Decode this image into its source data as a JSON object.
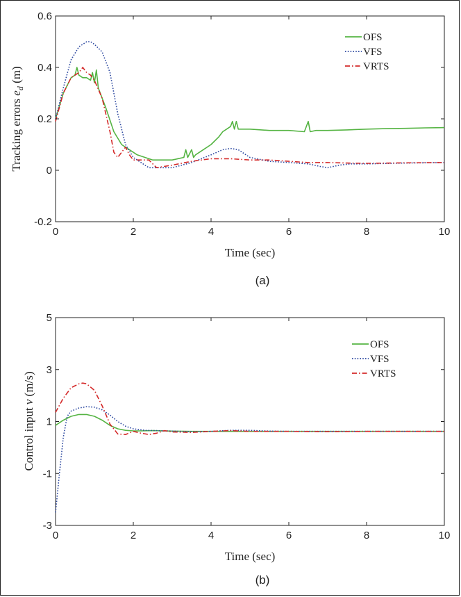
{
  "colors": {
    "OFS": "#55b443",
    "VFS": "#2c48a0",
    "VRTS": "#d42a2a",
    "axis": "#222222"
  },
  "chart_data": [
    {
      "panel": "a",
      "type": "line",
      "caption": "(a)",
      "xlabel": "Time (sec)",
      "ylabel_text": "Tracking errors ",
      "ylabel_var": "e",
      "ylabel_sub": "d",
      "ylabel_unit": " (m)",
      "xlim": [
        0,
        10
      ],
      "ylim": [
        -0.2,
        0.6
      ],
      "xticks": [
        0,
        2,
        4,
        6,
        8,
        10
      ],
      "yticks": [
        -0.2,
        0,
        0.2,
        0.4,
        0.6
      ],
      "ytick_labels": [
        "-0.2",
        "0",
        "0.2",
        "0.4",
        "0.6"
      ],
      "legend_position": "top-right",
      "series": [
        {
          "name": "OFS",
          "style": "solid",
          "x": [
            0,
            0.2,
            0.4,
            0.5,
            0.55,
            0.6,
            0.7,
            0.8,
            0.9,
            0.95,
            1.0,
            1.05,
            1.1,
            1.3,
            1.5,
            1.7,
            1.9,
            2.1,
            2.3,
            2.5,
            2.8,
            3.0,
            3.3,
            3.35,
            3.4,
            3.5,
            3.55,
            3.6,
            3.8,
            4.0,
            4.2,
            4.3,
            4.4,
            4.5,
            4.55,
            4.6,
            4.65,
            4.7,
            4.8,
            5.0,
            5.5,
            6.0,
            6.4,
            6.5,
            6.55,
            6.7,
            7.0,
            7.5,
            8.0,
            8.5,
            9.0,
            9.5,
            10.0
          ],
          "y": [
            0.2,
            0.3,
            0.36,
            0.37,
            0.4,
            0.37,
            0.36,
            0.36,
            0.35,
            0.38,
            0.34,
            0.39,
            0.32,
            0.24,
            0.15,
            0.1,
            0.08,
            0.06,
            0.05,
            0.04,
            0.04,
            0.04,
            0.05,
            0.08,
            0.05,
            0.08,
            0.05,
            0.06,
            0.08,
            0.1,
            0.13,
            0.15,
            0.16,
            0.17,
            0.19,
            0.16,
            0.19,
            0.16,
            0.16,
            0.16,
            0.155,
            0.155,
            0.15,
            0.19,
            0.15,
            0.155,
            0.155,
            0.157,
            0.16,
            0.162,
            0.163,
            0.165,
            0.166
          ]
        },
        {
          "name": "VFS",
          "style": "dotted",
          "x": [
            0,
            0.2,
            0.4,
            0.6,
            0.8,
            0.9,
            1.0,
            1.2,
            1.4,
            1.5,
            1.6,
            1.8,
            2.0,
            2.2,
            2.4,
            2.6,
            2.8,
            3.0,
            3.5,
            4.0,
            4.3,
            4.5,
            4.7,
            5.0,
            5.5,
            6.0,
            6.5,
            6.8,
            7.0,
            7.3,
            7.6,
            8.0,
            9.0,
            10.0
          ],
          "y": [
            0.2,
            0.32,
            0.43,
            0.48,
            0.5,
            0.5,
            0.49,
            0.46,
            0.38,
            0.3,
            0.22,
            0.1,
            0.05,
            0.03,
            0.01,
            0.01,
            0.01,
            0.01,
            0.03,
            0.06,
            0.08,
            0.085,
            0.08,
            0.05,
            0.035,
            0.03,
            0.025,
            0.015,
            0.01,
            0.02,
            0.025,
            0.025,
            0.028,
            0.03
          ]
        },
        {
          "name": "VRTS",
          "style": "dashdot",
          "x": [
            0,
            0.2,
            0.4,
            0.6,
            0.7,
            0.8,
            0.9,
            1.0,
            1.2,
            1.4,
            1.5,
            1.6,
            1.7,
            1.8,
            1.9,
            2.0,
            2.2,
            2.4,
            2.6,
            2.8,
            3.0,
            3.5,
            4.0,
            4.5,
            5.0,
            5.5,
            6.0,
            6.5,
            7.0,
            7.5,
            8.0,
            9.0,
            10.0
          ],
          "y": [
            0.19,
            0.3,
            0.36,
            0.38,
            0.4,
            0.38,
            0.37,
            0.35,
            0.28,
            0.15,
            0.07,
            0.05,
            0.07,
            0.09,
            0.06,
            0.04,
            0.04,
            0.04,
            0.01,
            0.015,
            0.02,
            0.035,
            0.045,
            0.045,
            0.04,
            0.04,
            0.035,
            0.03,
            0.03,
            0.028,
            0.027,
            0.029,
            0.03
          ]
        }
      ]
    },
    {
      "panel": "b",
      "type": "line",
      "caption": "(b)",
      "xlabel": "Time (sec)",
      "ylabel_text": "Control input ",
      "ylabel_var": "ν",
      "ylabel_sub": "",
      "ylabel_unit": " (m/s)",
      "xlim": [
        0,
        10
      ],
      "ylim": [
        -3,
        5
      ],
      "xticks": [
        0,
        2,
        4,
        6,
        8,
        10
      ],
      "yticks": [
        -3,
        -1,
        1,
        3,
        5
      ],
      "ytick_labels": [
        "-3",
        "-1",
        "1",
        "3",
        "5"
      ],
      "legend_position": "top-right",
      "series": [
        {
          "name": "OFS",
          "style": "solid",
          "x": [
            0,
            0.2,
            0.4,
            0.6,
            0.8,
            1.0,
            1.2,
            1.4,
            1.6,
            1.8,
            2.0,
            2.2,
            2.5,
            3.0,
            3.5,
            4.0,
            4.5,
            5.0,
            6.0,
            7.0,
            8.0,
            9.0,
            10.0
          ],
          "y": [
            0.85,
            1.05,
            1.2,
            1.27,
            1.27,
            1.2,
            1.05,
            0.85,
            0.72,
            0.66,
            0.64,
            0.64,
            0.65,
            0.63,
            0.62,
            0.62,
            0.62,
            0.62,
            0.62,
            0.62,
            0.62,
            0.62,
            0.62
          ]
        },
        {
          "name": "VFS",
          "style": "dotted",
          "x": [
            0,
            0.1,
            0.2,
            0.3,
            0.4,
            0.6,
            0.8,
            1.0,
            1.2,
            1.4,
            1.6,
            1.8,
            2.0,
            2.3,
            2.6,
            3.0,
            3.5,
            4.0,
            4.5,
            5.0,
            5.5,
            6.0,
            7.0,
            8.0,
            9.0,
            10.0
          ],
          "y": [
            -2.5,
            -1.0,
            0.4,
            1.2,
            1.4,
            1.52,
            1.57,
            1.55,
            1.45,
            1.25,
            1.0,
            0.82,
            0.72,
            0.66,
            0.65,
            0.63,
            0.61,
            0.62,
            0.66,
            0.66,
            0.63,
            0.62,
            0.62,
            0.62,
            0.62,
            0.62
          ]
        },
        {
          "name": "VRTS",
          "style": "dashdot",
          "x": [
            0,
            0.2,
            0.4,
            0.6,
            0.7,
            0.8,
            1.0,
            1.2,
            1.4,
            1.6,
            1.8,
            2.0,
            2.2,
            2.4,
            2.6,
            2.8,
            3.0,
            3.5,
            4.0,
            4.5,
            5.0,
            6.0,
            7.0,
            8.0,
            9.0,
            10.0
          ],
          "y": [
            1.35,
            1.9,
            2.3,
            2.45,
            2.48,
            2.45,
            2.2,
            1.6,
            0.9,
            0.52,
            0.5,
            0.62,
            0.55,
            0.5,
            0.55,
            0.65,
            0.6,
            0.58,
            0.62,
            0.65,
            0.62,
            0.62,
            0.61,
            0.62,
            0.62,
            0.62
          ]
        }
      ]
    }
  ]
}
